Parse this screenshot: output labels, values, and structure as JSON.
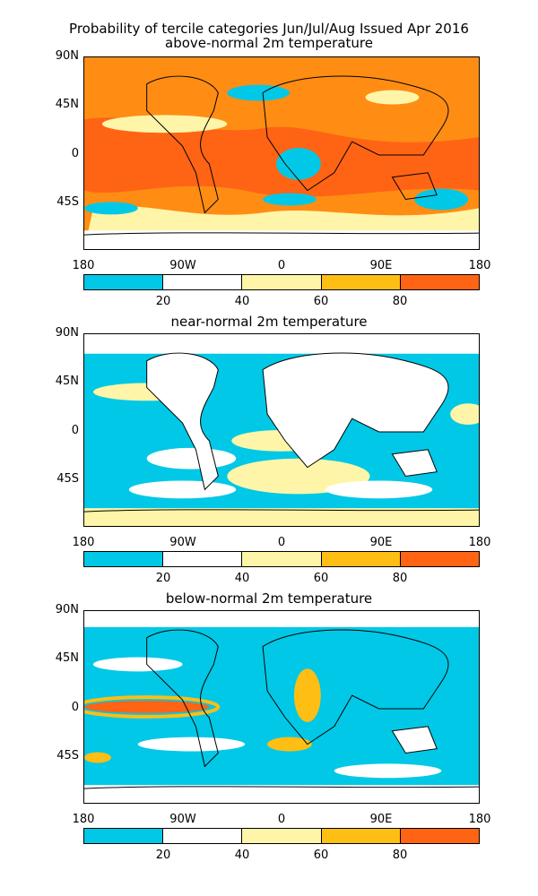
{
  "header": {
    "line1": "Probability of tercile categories Jun/Jul/Aug Issued Apr 2016",
    "line2": "above-normal 2m temperature"
  },
  "panels": [
    {
      "title": "",
      "fill_style": "above"
    },
    {
      "title": "near-normal 2m temperature",
      "fill_style": "near"
    },
    {
      "title": "below-normal 2m temperature",
      "fill_style": "below"
    }
  ],
  "axes": {
    "lat_labels": [
      "90N",
      "45N",
      "0",
      "45S"
    ],
    "lon_labels": [
      "180",
      "90W",
      "0",
      "90E",
      "180"
    ]
  },
  "colorbar": {
    "colors": [
      "#00c8e6",
      "#ffffff",
      "#fff5a8",
      "#ffbe14",
      "#ff6414"
    ],
    "tick_labels": [
      "20",
      "40",
      "60",
      "80"
    ]
  }
}
